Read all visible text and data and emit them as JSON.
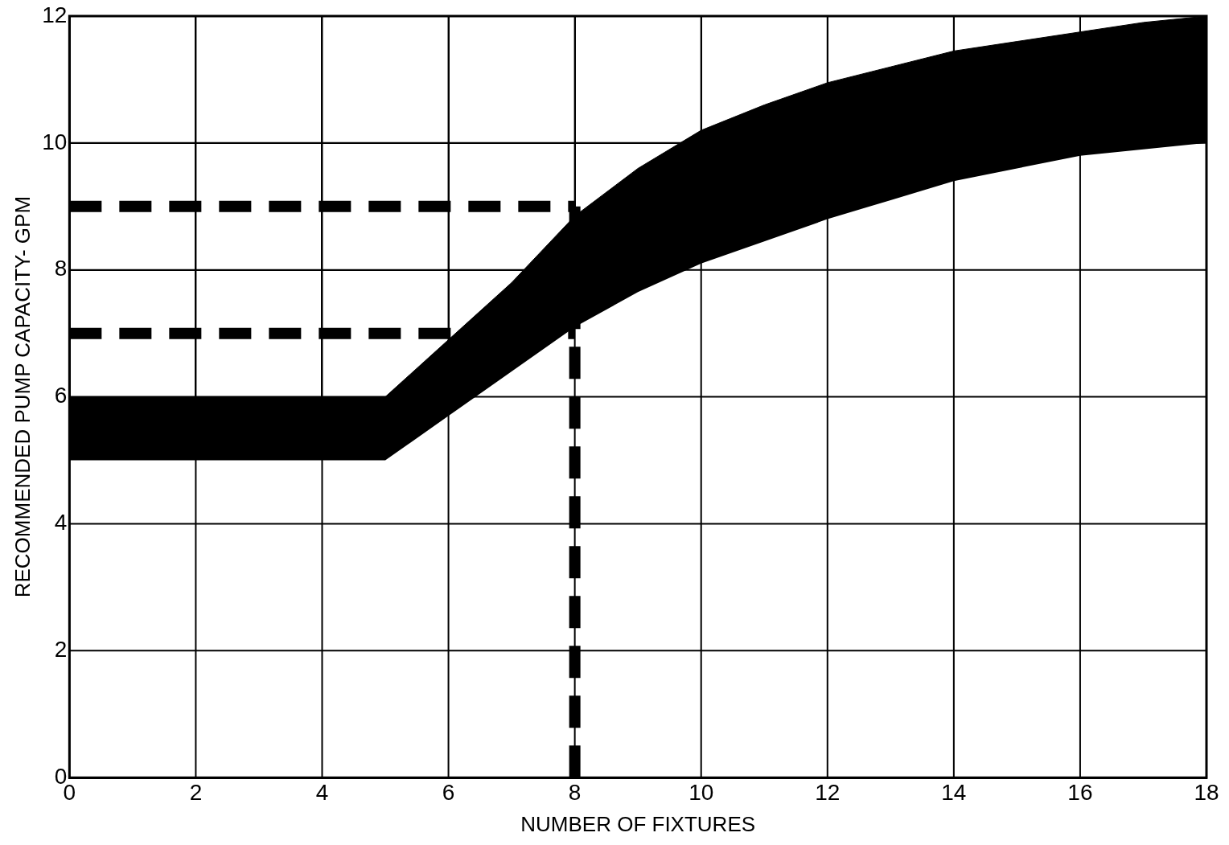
{
  "chart_data": {
    "type": "area",
    "stacked": true,
    "xlabel": "NUMBER OF FIXTURES",
    "ylabel": "RECOMMENDED PUMP CAPACITY- GPM",
    "xlim": [
      0,
      18
    ],
    "ylim": [
      0,
      12
    ],
    "xticks": [
      0,
      2,
      4,
      6,
      8,
      10,
      12,
      14,
      16,
      18
    ],
    "yticks": [
      0,
      2,
      4,
      6,
      8,
      10,
      12
    ],
    "grid": true,
    "legend": false,
    "series": [
      {
        "color": "#ffffff",
        "x": [
          0,
          5,
          6,
          7,
          8,
          9,
          10,
          11,
          12,
          13,
          14,
          15,
          16,
          17,
          18
        ],
        "values": [
          5,
          5,
          5.7,
          6.4,
          7.1,
          7.65,
          8.1,
          8.45,
          8.8,
          9.1,
          9.4,
          9.6,
          9.8,
          9.9,
          10
        ]
      },
      {
        "color": "#000000",
        "x": [
          0,
          5,
          6,
          7,
          8,
          9,
          10,
          11,
          12,
          13,
          14,
          15,
          16,
          17,
          18
        ],
        "values": [
          1,
          1,
          1.2,
          1.4,
          1.75,
          1.95,
          2.1,
          2.15,
          2.15,
          2.1,
          2.05,
          2,
          1.95,
          2,
          2
        ]
      },
      {
        "type": "line",
        "color": "#000000",
        "line_style": "dashed",
        "marker": "none",
        "x": [
          0,
          8
        ],
        "values": [
          9,
          9
        ]
      },
      {
        "type": "line",
        "color": "#000000",
        "line_style": "dashed",
        "marker": "none",
        "x": [
          0,
          8
        ],
        "values": [
          7,
          7
        ]
      },
      {
        "type": "line",
        "color": "#000000",
        "line_style": "dashed",
        "marker": "none",
        "x": [
          8,
          8
        ],
        "values": [
          0,
          9
        ]
      }
    ]
  }
}
